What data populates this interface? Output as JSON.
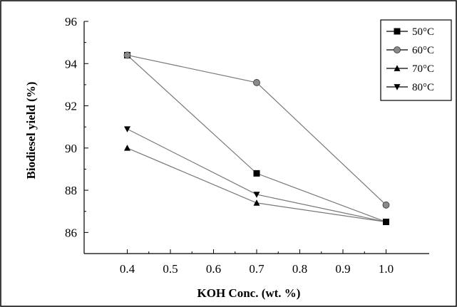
{
  "chart_data": {
    "type": "line",
    "xlabel": "KOH Conc. (wt. %)",
    "ylabel": "Biodiesel yield (%)",
    "xlim": [
      0.3,
      1.1
    ],
    "ylim": [
      85,
      96
    ],
    "xticks": [
      0.4,
      0.5,
      0.6,
      0.7,
      0.8,
      0.9,
      1.0
    ],
    "xtick_labels": [
      "0.4",
      "0.5",
      "0.6",
      "0.7",
      "0.8",
      "0.9",
      "1.0"
    ],
    "yticks": [
      86,
      88,
      90,
      92,
      94,
      96
    ],
    "ytick_labels": [
      "86",
      "88",
      "90",
      "92",
      "94",
      "96"
    ],
    "grid": false,
    "legend_position": "top-right",
    "x": [
      0.4,
      0.7,
      1.0
    ],
    "series": [
      {
        "name": "50°C",
        "marker": "square",
        "values": [
          94.4,
          88.8,
          86.5
        ]
      },
      {
        "name": "60°C",
        "marker": "circle",
        "values": [
          94.4,
          93.1,
          87.3
        ]
      },
      {
        "name": "70°C",
        "marker": "triangle-up",
        "values": [
          90.0,
          87.4,
          86.5
        ]
      },
      {
        "name": "80°C",
        "marker": "triangle-down",
        "values": [
          90.9,
          87.8,
          86.5
        ]
      }
    ],
    "colors": {
      "line": "#777777",
      "marker": "#000000",
      "circle_fill": "#8a8a8a"
    }
  }
}
